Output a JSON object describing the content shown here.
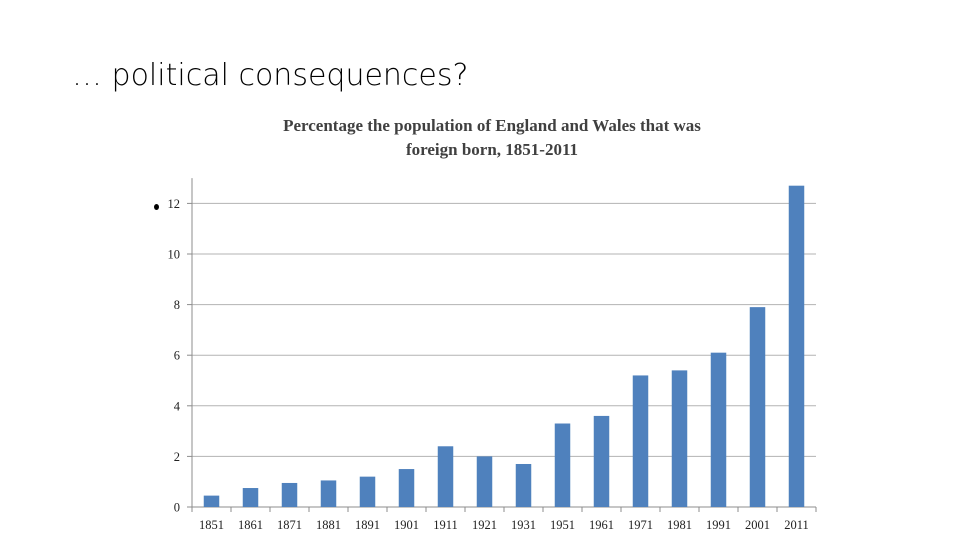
{
  "slide": {
    "title": "… political consequences?"
  },
  "chart_data": {
    "type": "bar",
    "title_lines": [
      "Percentage the population of England and Wales that was",
      "foreign born, 1851-2011"
    ],
    "categories": [
      "1851",
      "1861",
      "1871",
      "1881",
      "1891",
      "1901",
      "1911",
      "1921",
      "1931",
      "1951",
      "1961",
      "1971",
      "1981",
      "1991",
      "2001",
      "2011"
    ],
    "values": [
      0.45,
      0.75,
      0.95,
      1.05,
      1.2,
      1.5,
      2.4,
      2.0,
      1.7,
      3.3,
      3.6,
      5.2,
      5.4,
      6.1,
      7.9,
      12.7
    ],
    "ylim": [
      0,
      13
    ],
    "yticks": [
      0,
      2,
      4,
      6,
      8,
      10,
      12
    ],
    "xlabel": "",
    "ylabel": "",
    "bar_color": "#4f81bd",
    "gridlines": true
  }
}
